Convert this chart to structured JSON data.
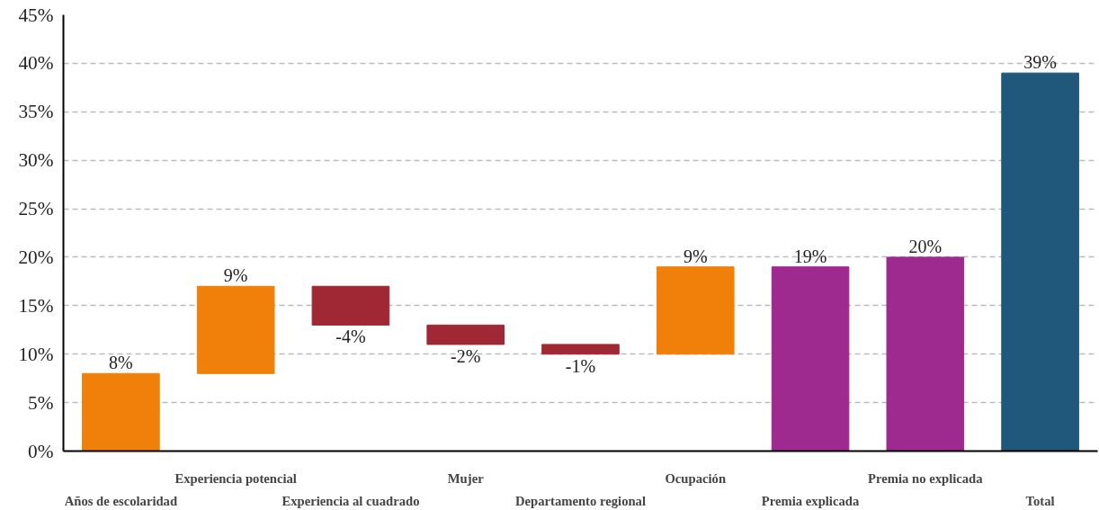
{
  "chart_data": {
    "type": "bar",
    "categories": [
      "Años de escolaridad",
      "Experiencia potencial",
      "Experiencia al cuadrado",
      "Mujer",
      "Departamento regional",
      "Ocupación",
      "Premia explicada",
      "Premia no explicada",
      "Total"
    ],
    "values": [
      8,
      9,
      -4,
      -2,
      -1,
      9,
      19,
      20,
      39
    ],
    "base": [
      0,
      8,
      17,
      13,
      11,
      10,
      0,
      0,
      0
    ],
    "colors": [
      "#f08009",
      "#f08009",
      "#a02734",
      "#a02734",
      "#a02734",
      "#f08009",
      "#9e2a8f",
      "#9e2a8f",
      "#1f587a"
    ],
    "value_labels": [
      "8%",
      "9%",
      "-4%",
      "-2%",
      "-1%",
      "9%",
      "19%",
      "20%",
      "39%"
    ],
    "ylim": [
      0,
      45
    ],
    "yticks": [
      {
        "value": 0,
        "label": "0%"
      },
      {
        "value": 5,
        "label": "5%"
      },
      {
        "value": 10,
        "label": "10%"
      },
      {
        "value": 15,
        "label": "15%"
      },
      {
        "value": 20,
        "label": "20%"
      },
      {
        "value": 25,
        "label": "25%"
      },
      {
        "value": 30,
        "label": "30%"
      },
      {
        "value": 35,
        "label": "35%"
      },
      {
        "value": 40,
        "label": "40%"
      },
      {
        "value": 45,
        "label": "45%"
      }
    ],
    "grid": "y"
  }
}
